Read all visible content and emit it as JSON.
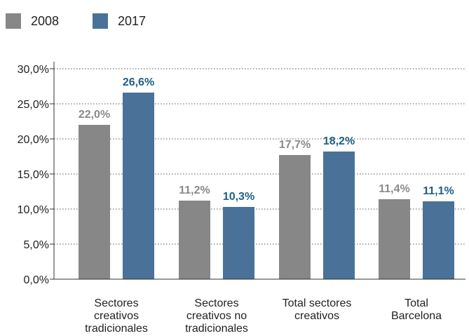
{
  "chart_data": {
    "type": "bar",
    "categories": [
      [
        "Sectores",
        "creativos",
        "tradicionales"
      ],
      [
        "Sectores",
        "creativos no",
        "tradicionales"
      ],
      [
        "Total sectores",
        "creativos"
      ],
      [
        "Total",
        "Barcelona"
      ]
    ],
    "series": [
      {
        "name": "2008",
        "color": "#878787",
        "values": [
          22.0,
          11.2,
          17.7,
          11.4
        ],
        "value_labels": [
          "22,0%",
          "11,2%",
          "17,7%",
          "11,4%"
        ]
      },
      {
        "name": "2017",
        "color": "#4a7299",
        "values": [
          26.6,
          10.3,
          18.2,
          11.1
        ],
        "value_labels": [
          "26,6%",
          "10,3%",
          "18,2%",
          "11,1%"
        ]
      }
    ],
    "label_colors": [
      "#8a8a8a",
      "#1f5f86"
    ],
    "y_ticks": [
      0,
      5,
      10,
      15,
      20,
      25,
      30
    ],
    "y_tick_labels": [
      "0,0%",
      "5,0%",
      "10,0%",
      "15,0%",
      "20,0%",
      "25,0%",
      "30,0%"
    ],
    "ylim": [
      0,
      30
    ],
    "grid": "horizontal-dotted",
    "legend": "top-left",
    "title": "",
    "xlabel": "",
    "ylabel": ""
  }
}
